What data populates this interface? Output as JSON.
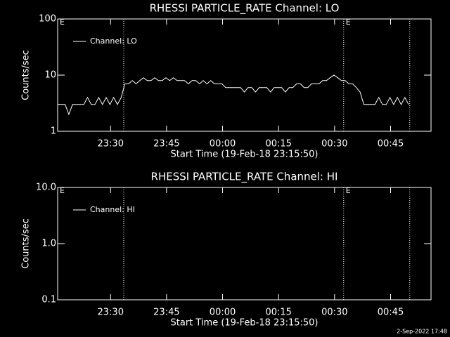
{
  "chart_data": [
    {
      "type": "line",
      "title": "RHESSI PARTICLE_RATE Channel: LO",
      "xlabel": "Start Time (19-Feb-18 23:15:50)",
      "ylabel": "Counts/sec",
      "log_y": true,
      "xlim": [
        0,
        100
      ],
      "ylim": [
        1,
        100
      ],
      "xticks": [
        {
          "value": 14.17,
          "label": "23:30"
        },
        {
          "value": 29.17,
          "label": "23:45"
        },
        {
          "value": 44.17,
          "label": "00:00"
        },
        {
          "value": 59.17,
          "label": "00:15"
        },
        {
          "value": 74.17,
          "label": "00:30"
        },
        {
          "value": 89.17,
          "label": "00:45"
        }
      ],
      "yticks": [
        1,
        10,
        100
      ],
      "markers": [
        17.7,
        76.6,
        94.3
      ],
      "annotations": [
        {
          "x": 0,
          "text": "E"
        },
        {
          "x": 76.6,
          "text": "E"
        }
      ],
      "x": [
        0,
        1,
        2,
        3,
        4,
        5,
        6,
        7,
        8,
        9,
        10,
        11,
        12,
        13,
        14,
        15,
        16,
        17,
        18,
        19,
        20,
        21,
        22,
        23,
        24,
        25,
        26,
        27,
        28,
        29,
        30,
        31,
        32,
        33,
        34,
        35,
        36,
        37,
        38,
        39,
        40,
        41,
        42,
        43,
        44,
        45,
        46,
        47,
        48,
        49,
        50,
        51,
        52,
        53,
        54,
        55,
        56,
        57,
        58,
        59,
        60,
        61,
        62,
        63,
        64,
        65,
        66,
        67,
        68,
        69,
        70,
        71,
        72,
        73,
        74,
        75,
        76,
        77,
        78,
        79,
        80,
        81,
        82,
        83,
        84,
        85,
        86,
        87,
        88,
        89,
        90,
        91,
        92,
        93,
        94
      ],
      "series": [
        {
          "name": "Channel: LO",
          "color": "#ffffff",
          "values": [
            3,
            3,
            3,
            2,
            3,
            3,
            3,
            3,
            4,
            3,
            3,
            4,
            3,
            4,
            3,
            4,
            3,
            4,
            7,
            7,
            8,
            7,
            8,
            9,
            8,
            8,
            9,
            8,
            8,
            9,
            8,
            9,
            8,
            8,
            8,
            7,
            8,
            8,
            7,
            8,
            7,
            8,
            7,
            7,
            7,
            6,
            6,
            6,
            6,
            6,
            5,
            6,
            6,
            5,
            6,
            6,
            6,
            5,
            6,
            6,
            6,
            5,
            6,
            6,
            7,
            7,
            6,
            6,
            7,
            7,
            7,
            8,
            8,
            9,
            10,
            9,
            8,
            8,
            7,
            7,
            6,
            5,
            3,
            3,
            3,
            3,
            4,
            3,
            3,
            4,
            3,
            4,
            3,
            4,
            3
          ]
        }
      ]
    },
    {
      "type": "line",
      "title": "RHESSI PARTICLE_RATE Channel: HI",
      "xlabel": "Start Time (19-Feb-18 23:15:50)",
      "ylabel": "Counts/sec",
      "log_y": true,
      "xlim": [
        0,
        100
      ],
      "ylim": [
        0.1,
        10
      ],
      "xticks": [
        {
          "value": 14.17,
          "label": "23:30"
        },
        {
          "value": 29.17,
          "label": "23:45"
        },
        {
          "value": 44.17,
          "label": "00:00"
        },
        {
          "value": 59.17,
          "label": "00:15"
        },
        {
          "value": 74.17,
          "label": "00:30"
        },
        {
          "value": 89.17,
          "label": "00:45"
        }
      ],
      "yticks": [
        {
          "value": 0.1,
          "label": "0.1"
        },
        {
          "value": 1,
          "label": "1.0"
        },
        {
          "value": 10,
          "label": "10.0"
        }
      ],
      "markers": [
        17.7,
        76.6,
        94.3
      ],
      "annotations": [
        {
          "x": 0,
          "text": "E"
        },
        {
          "x": 76.6,
          "text": "E"
        }
      ],
      "x": [],
      "series": [
        {
          "name": "Channel: HI",
          "color": "#ffffff",
          "values": []
        }
      ]
    }
  ],
  "footer": "2-Sep-2022 17:48"
}
